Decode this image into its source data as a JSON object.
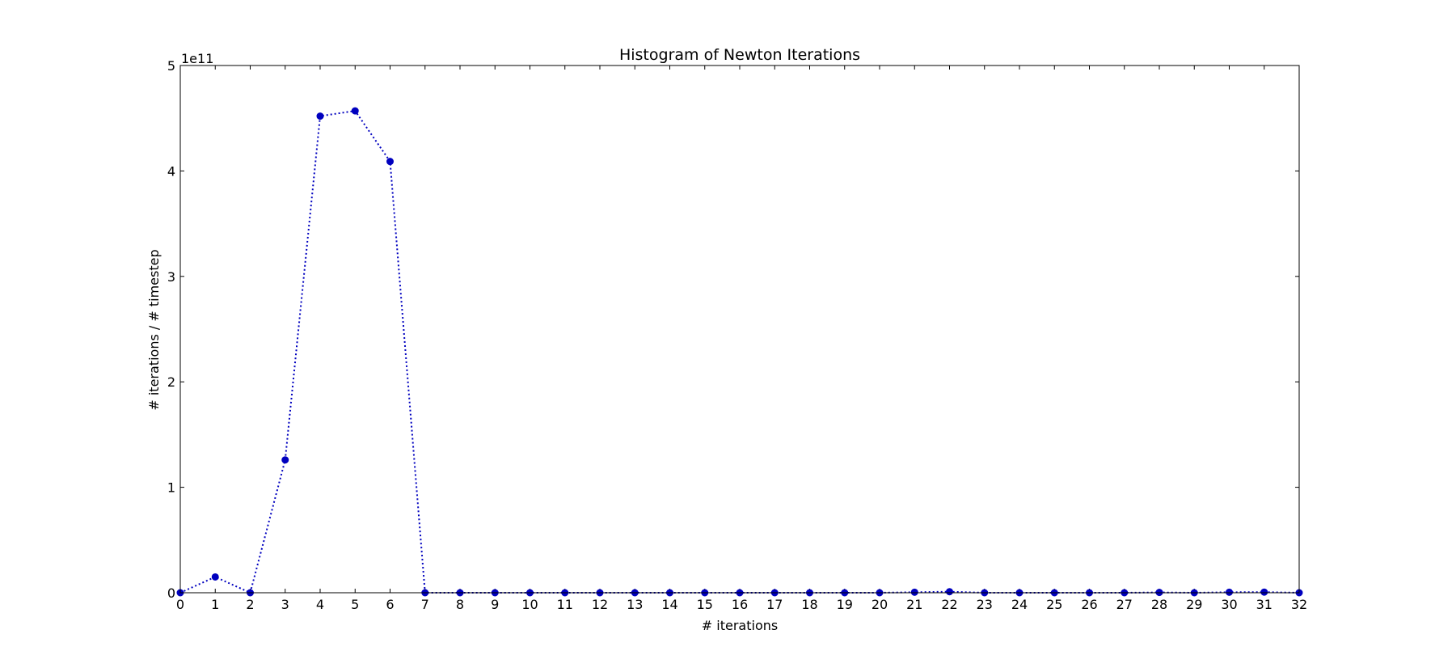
{
  "chart_data": {
    "type": "line",
    "title": "Histogram of Newton Iterations",
    "xlabel": "# iterations",
    "ylabel": "# iterations / # timestep",
    "offset_text": "1e11",
    "x": [
      0,
      1,
      2,
      3,
      4,
      5,
      6,
      7,
      8,
      9,
      10,
      11,
      12,
      13,
      14,
      15,
      16,
      17,
      18,
      19,
      20,
      21,
      22,
      23,
      24,
      25,
      26,
      27,
      28,
      29,
      30,
      31,
      32
    ],
    "series": [
      {
        "values": [
          0,
          0.15,
          0,
          1.26,
          4.52,
          4.57,
          4.09,
          0,
          0,
          0,
          0,
          0,
          0,
          0,
          0,
          0,
          0,
          0,
          0,
          0,
          0,
          0.005,
          0.01,
          0,
          0,
          0,
          0,
          0,
          0.003,
          0,
          0.005,
          0.006,
          0
        ],
        "color": "#0000bf",
        "line_style": "dotted",
        "marker": "circle"
      }
    ],
    "xlim": [
      0,
      32
    ],
    "ylim": [
      0,
      5
    ],
    "xticks": [
      "0",
      "1",
      "2",
      "3",
      "4",
      "5",
      "6",
      "7",
      "8",
      "9",
      "10",
      "11",
      "12",
      "13",
      "14",
      "15",
      "16",
      "17",
      "18",
      "19",
      "20",
      "21",
      "22",
      "23",
      "24",
      "25",
      "26",
      "27",
      "28",
      "29",
      "30",
      "31",
      "32"
    ],
    "yticks": [
      "0",
      "1",
      "2",
      "3",
      "4",
      "5"
    ],
    "grid": false,
    "legend": "none"
  }
}
